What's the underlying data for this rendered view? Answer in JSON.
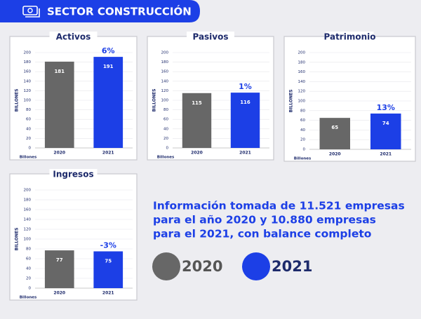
{
  "header": {
    "title": "SECTOR CONSTRUCCIÓN"
  },
  "chart_data": [
    {
      "type": "bar",
      "title": "Activos",
      "y_label": "BILLONES",
      "unit_label": "Billones",
      "categories": [
        "2020",
        "2021"
      ],
      "values": [
        181,
        191
      ],
      "colors": [
        "#676767",
        "#1c3fe6"
      ],
      "annotation": "6%",
      "ylim": [
        0,
        200
      ],
      "yticks": [
        0,
        20,
        40,
        60,
        80,
        100,
        120,
        140,
        160,
        180,
        200
      ],
      "grid": true
    },
    {
      "type": "bar",
      "title": "Pasivos",
      "y_label": "BILLONES",
      "unit_label": "Billones",
      "categories": [
        "2020",
        "2021"
      ],
      "values": [
        115,
        116
      ],
      "colors": [
        "#676767",
        "#1c3fe6"
      ],
      "annotation": "1%",
      "ylim": [
        0,
        200
      ],
      "yticks": [
        0,
        20,
        40,
        60,
        80,
        100,
        120,
        140,
        160,
        180,
        200
      ],
      "grid": true
    },
    {
      "type": "bar",
      "title": "Patrimonio",
      "y_label": "BILLONES",
      "unit_label": "Billones",
      "categories": [
        "2020",
        "2021"
      ],
      "values": [
        65,
        74
      ],
      "colors": [
        "#676767",
        "#1c3fe6"
      ],
      "annotation": "13%",
      "ylim": [
        0,
        200
      ],
      "yticks": [
        0,
        20,
        40,
        60,
        80,
        100,
        120,
        140,
        160,
        180,
        200
      ],
      "grid": true
    },
    {
      "type": "bar",
      "title": "Ingresos",
      "y_label": "BILLONES",
      "unit_label": "Billones",
      "categories": [
        "2020",
        "2021"
      ],
      "values": [
        77,
        75
      ],
      "colors": [
        "#676767",
        "#1c3fe6"
      ],
      "annotation": "-3%",
      "ylim": [
        0,
        200
      ],
      "yticks": [
        0,
        20,
        40,
        60,
        80,
        100,
        120,
        140,
        160,
        180,
        200
      ],
      "grid": true
    }
  ],
  "info": {
    "lines": [
      "Información tomada de 11.521 empresas",
      "para el año 2020 y 10.880 empresas",
      "para el 2021, con balance completo"
    ]
  },
  "legend": [
    {
      "label": "2020",
      "color": "#676767"
    },
    {
      "label": "2021",
      "color": "#1c3fe6"
    }
  ]
}
